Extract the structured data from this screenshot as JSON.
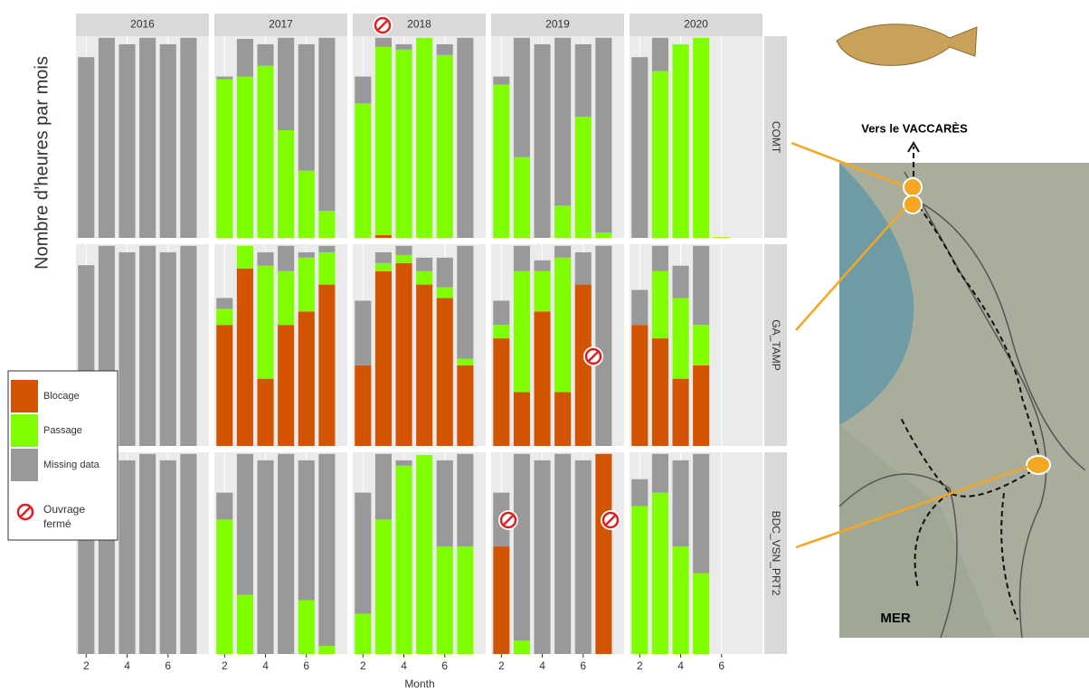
{
  "chart_data": {
    "type": "bar",
    "stacked": true,
    "y_label": "Nombre d’heures par mois",
    "x_label": "Month",
    "facet_cols": [
      "2016",
      "2017",
      "2018",
      "2019",
      "2020"
    ],
    "facet_rows": [
      "COMT",
      "GA_TAMP",
      "BDC_VSN_PRT2"
    ],
    "x": [
      2,
      3,
      4,
      5,
      6,
      7
    ],
    "xlim": [
      1.5,
      8
    ],
    "xticks": [
      2,
      4,
      6
    ],
    "ylim": [
      0,
      750
    ],
    "closure_label": "Ouvrage fermé",
    "series": [
      {
        "name": "Blocage",
        "color": "#d35400",
        "values": [
          [
            [
              0,
              0,
              0,
              0,
              0,
              0
            ],
            [
              0,
              0,
              0,
              0,
              0,
              0
            ],
            [
              0,
              10,
              0,
              0,
              0,
              0
            ],
            [
              0,
              0,
              0,
              0,
              0,
              0
            ],
            [
              0,
              0,
              0,
              0,
              0,
              0
            ]
          ],
          [
            [
              0,
              0,
              0,
              0,
              0,
              0
            ],
            [
              450,
              660,
              250,
              450,
              500,
              600
            ],
            [
              300,
              650,
              680,
              600,
              550,
              300
            ],
            [
              400,
              200,
              500,
              200,
              600,
              0
            ],
            [
              450,
              400,
              250,
              300,
              0,
              0
            ]
          ],
          [
            [
              0,
              0,
              0,
              0,
              0,
              0
            ],
            [
              0,
              0,
              0,
              0,
              0,
              0
            ],
            [
              0,
              0,
              0,
              0,
              0,
              0
            ],
            [
              400,
              0,
              0,
              0,
              0,
              744
            ],
            [
              0,
              0,
              0,
              0,
              0,
              0
            ]
          ]
        ]
      },
      {
        "name": "Passage",
        "color": "#80ff00",
        "values": [
          [
            [
              0,
              0,
              0,
              0,
              0,
              0
            ],
            [
              590,
              600,
              640,
              400,
              250,
              100
            ],
            [
              500,
              700,
              700,
              744,
              680,
              0
            ],
            [
              570,
              300,
              0,
              120,
              450,
              20
            ],
            [
              0,
              620,
              720,
              744,
              3,
              0
            ]
          ],
          [
            [
              0,
              0,
              0,
              0,
              0,
              0
            ],
            [
              60,
              84,
              420,
              200,
              200,
              120
            ],
            [
              0,
              30,
              30,
              50,
              40,
              24
            ],
            [
              50,
              450,
              150,
              500,
              0,
              0
            ],
            [
              0,
              250,
              300,
              150,
              0,
              0
            ]
          ],
          [
            [
              0,
              0,
              0,
              0,
              0,
              0
            ],
            [
              500,
              220,
              0,
              0,
              200,
              30
            ],
            [
              150,
              500,
              700,
              740,
              400,
              400
            ],
            [
              0,
              50,
              0,
              0,
              0,
              0
            ],
            [
              550,
              600,
              400,
              300,
              0,
              0
            ]
          ]
        ]
      },
      {
        "name": "Missing data",
        "color": "#999999",
        "values": [
          [
            [
              672,
              744,
              720,
              744,
              720,
              744
            ],
            [
              10,
              140,
              80,
              344,
              470,
              644
            ],
            [
              100,
              34,
              20,
              0,
              40,
              744
            ],
            [
              30,
              444,
              720,
              624,
              270,
              724
            ],
            [
              672,
              124,
              0,
              0,
              0,
              0
            ]
          ],
          [
            [
              672,
              744,
              720,
              744,
              720,
              744
            ],
            [
              40,
              0,
              50,
              94,
              20,
              24
            ],
            [
              240,
              40,
              34,
              50,
              110,
              420
            ],
            [
              90,
              94,
              40,
              44,
              120,
              744
            ],
            [
              130,
              94,
              120,
              294,
              0,
              0
            ]
          ],
          [
            [
              672,
              744,
              720,
              744,
              720,
              744
            ],
            [
              100,
              524,
              720,
              744,
              520,
              714
            ],
            [
              450,
              244,
              20,
              0,
              320,
              344
            ],
            [
              200,
              694,
              720,
              744,
              720,
              0
            ],
            [
              100,
              144,
              320,
              444,
              0,
              0
            ]
          ]
        ]
      }
    ]
  },
  "map": {
    "top_label": "Vers le VACCARÈS",
    "sea_label": "MER"
  }
}
